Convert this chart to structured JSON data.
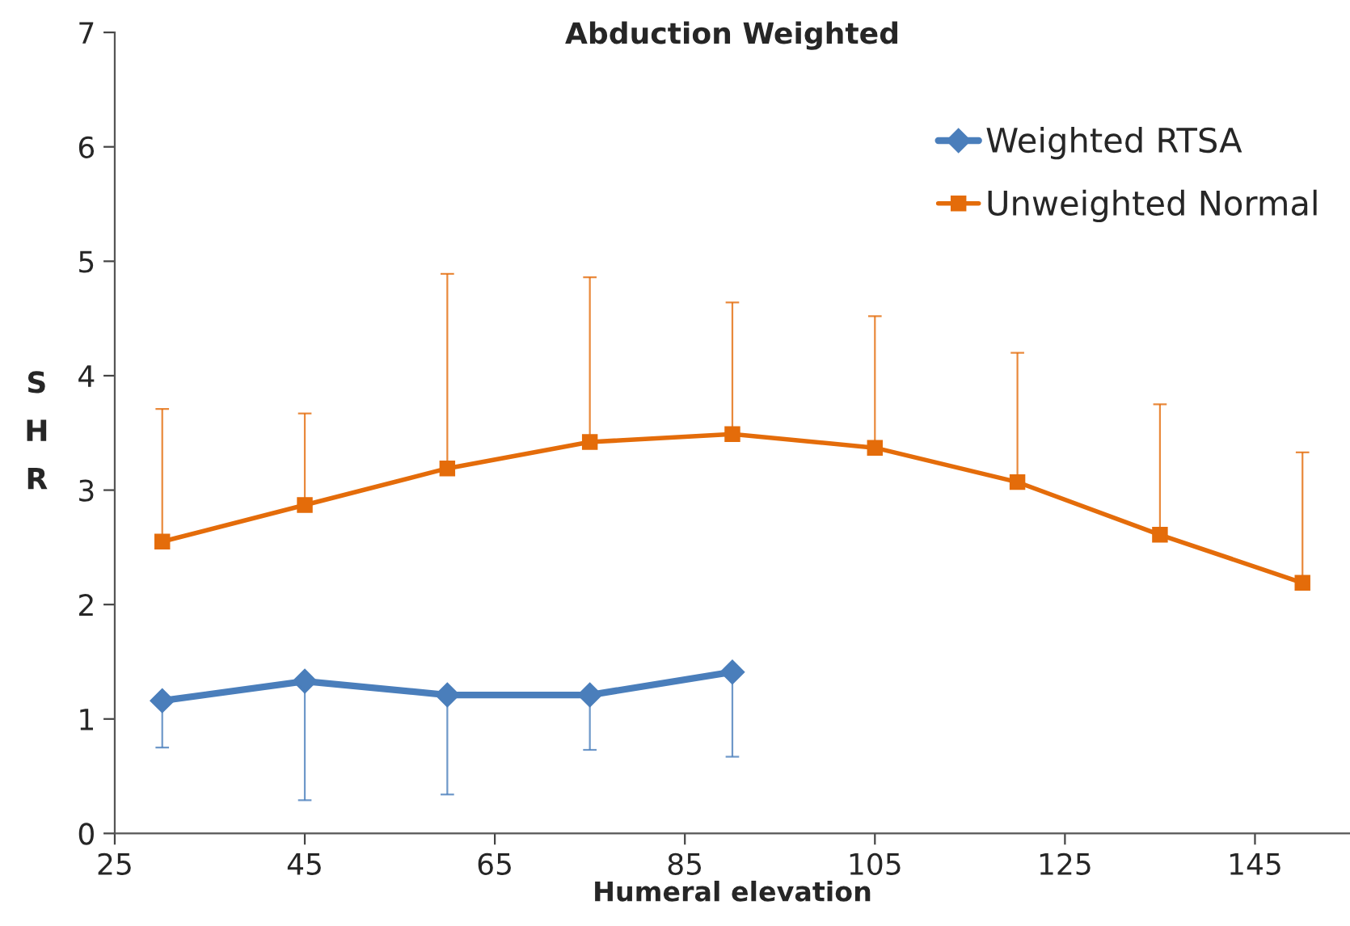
{
  "chart_data": {
    "type": "line",
    "title": "Abduction Weighted",
    "xlabel": "Humeral elevation",
    "ylabel": "SHR",
    "x": [
      30,
      45,
      60,
      75,
      90,
      105,
      120,
      135,
      150
    ],
    "series": [
      {
        "name": "Weighted RTSA",
        "color": "#4a7ebb",
        "marker": "diamond",
        "values": [
          1.16,
          1.33,
          1.21,
          1.21,
          1.41,
          null,
          null,
          null,
          null
        ],
        "errors": [
          [
            0.75,
            1.16
          ],
          [
            0.29,
            1.33
          ],
          [
            0.34,
            1.21
          ],
          [
            0.73,
            1.21
          ],
          [
            0.67,
            1.41
          ],
          null,
          null,
          null,
          null
        ]
      },
      {
        "name": "Unweighted Normal",
        "color": "#e46c0a",
        "marker": "square",
        "values": [
          2.55,
          2.87,
          3.19,
          3.42,
          3.49,
          3.37,
          3.07,
          2.61,
          2.19
        ],
        "errors": [
          [
            2.55,
            3.71
          ],
          [
            2.87,
            3.67
          ],
          [
            3.19,
            4.89
          ],
          [
            3.42,
            4.86
          ],
          [
            3.49,
            4.64
          ],
          [
            3.37,
            4.52
          ],
          [
            3.07,
            4.2
          ],
          [
            2.61,
            3.75
          ],
          [
            2.19,
            3.33
          ]
        ]
      }
    ],
    "xlim": [
      25,
      155
    ],
    "xticks": [
      25,
      45,
      65,
      85,
      105,
      125,
      145
    ],
    "ylim": [
      0,
      7
    ],
    "yticks": [
      0,
      1,
      2,
      3,
      4,
      5,
      6,
      7
    ],
    "grid": false,
    "legend": "top right"
  }
}
